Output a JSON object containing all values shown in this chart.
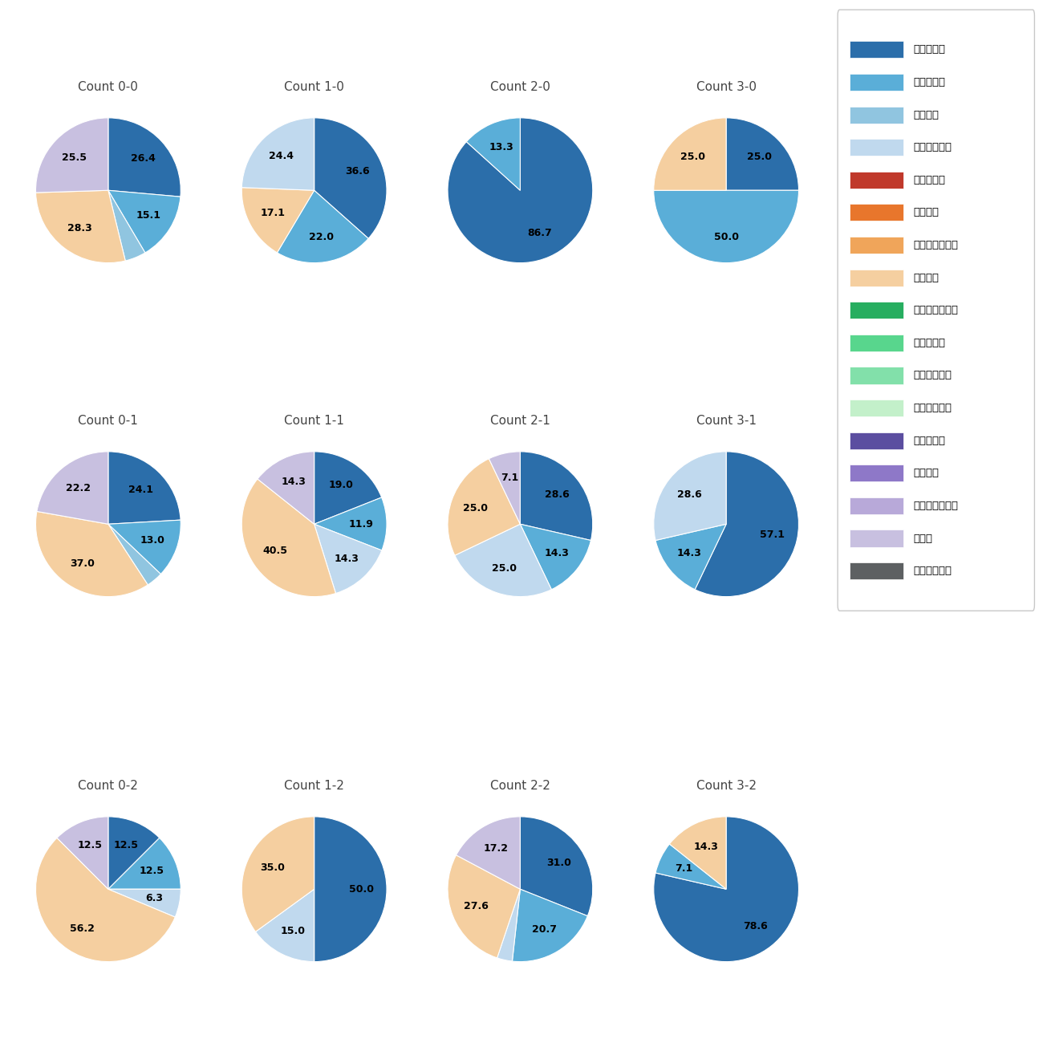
{
  "pitch_types": [
    "ストレート",
    "ツーシーム",
    "シュート",
    "カットボール",
    "スプリット",
    "フォーク",
    "チェンジアップ",
    "シンカー",
    "高速スライダー",
    "スライダー",
    "縦スライダー",
    "パワーカーブ",
    "スクリュー",
    "ナックル",
    "ナックルカーブ",
    "カーブ",
    "スローカーブ"
  ],
  "colors": {
    "ストレート": "#2b6eaa",
    "ツーシーム": "#5aaed8",
    "シュート": "#90c5e0",
    "カットボール": "#c0d9ee",
    "スプリット": "#c0392b",
    "フォーク": "#e8762c",
    "チェンジアップ": "#f0a55a",
    "シンカー": "#f5cfa0",
    "高速スライダー": "#27ae60",
    "スライダー": "#58d68d",
    "縦スライダー": "#82e0aa",
    "パワーカーブ": "#c3f0ca",
    "スクリュー": "#5b4ea0",
    "ナックル": "#8e78c8",
    "ナックルカーブ": "#b8a9d9",
    "カーブ": "#c8c0e0",
    "スローカーブ": "#5d6062"
  },
  "counts": [
    "0-0",
    "1-0",
    "2-0",
    "3-0",
    "0-1",
    "1-1",
    "2-1",
    "3-1",
    "0-2",
    "1-2",
    "2-2",
    "3-2"
  ],
  "data": {
    "0-0": {
      "ストレート": 26.4,
      "ツーシーム": 15.1,
      "シュート": 4.7,
      "シンカー": 28.3,
      "カーブ": 25.5
    },
    "1-0": {
      "ストレート": 36.6,
      "ツーシーム": 22.0,
      "シンカー": 17.1,
      "カットボール": 24.4
    },
    "2-0": {
      "ストレート": 86.7,
      "ツーシーム": 13.3
    },
    "3-0": {
      "ストレート": 25.0,
      "ツーシーム": 50.0,
      "シンカー": 25.0
    },
    "0-1": {
      "ストレート": 24.1,
      "ツーシーム": 13.0,
      "シュート": 3.7,
      "シンカー": 37.0,
      "カーブ": 22.2
    },
    "1-1": {
      "ストレート": 19.0,
      "ツーシーム": 11.9,
      "カットボール": 14.3,
      "シンカー": 40.5,
      "カーブ": 14.3
    },
    "2-1": {
      "ストレート": 28.6,
      "ツーシーム": 14.3,
      "カットボール": 25.0,
      "シンカー": 25.0,
      "カーブ": 7.1
    },
    "3-1": {
      "ストレート": 57.1,
      "ツーシーム": 14.3,
      "カットボール": 28.6
    },
    "0-2": {
      "ストレート": 12.5,
      "ツーシーム": 12.5,
      "カットボール": 6.3,
      "シンカー": 56.2,
      "カーブ": 12.5
    },
    "1-2": {
      "ストレート": 50.0,
      "カットボール": 15.0,
      "シンカー": 35.0
    },
    "2-2": {
      "ストレート": 31.0,
      "ツーシーム": 20.7,
      "カットボール": 3.4,
      "シンカー": 27.6,
      "カーブ": 17.2
    },
    "3-2": {
      "ストレート": 78.6,
      "ツーシーム": 7.1,
      "シンカー": 14.3
    }
  },
  "count_layout": [
    [
      "0-0",
      "1-0",
      "2-0",
      "3-0"
    ],
    [
      "0-1",
      "1-1",
      "2-1",
      "3-1"
    ],
    [
      "0-2",
      "1-2",
      "2-2",
      "3-2"
    ]
  ],
  "label_threshold": 5.0,
  "title_fontsize": 11,
  "label_fontsize": 9
}
